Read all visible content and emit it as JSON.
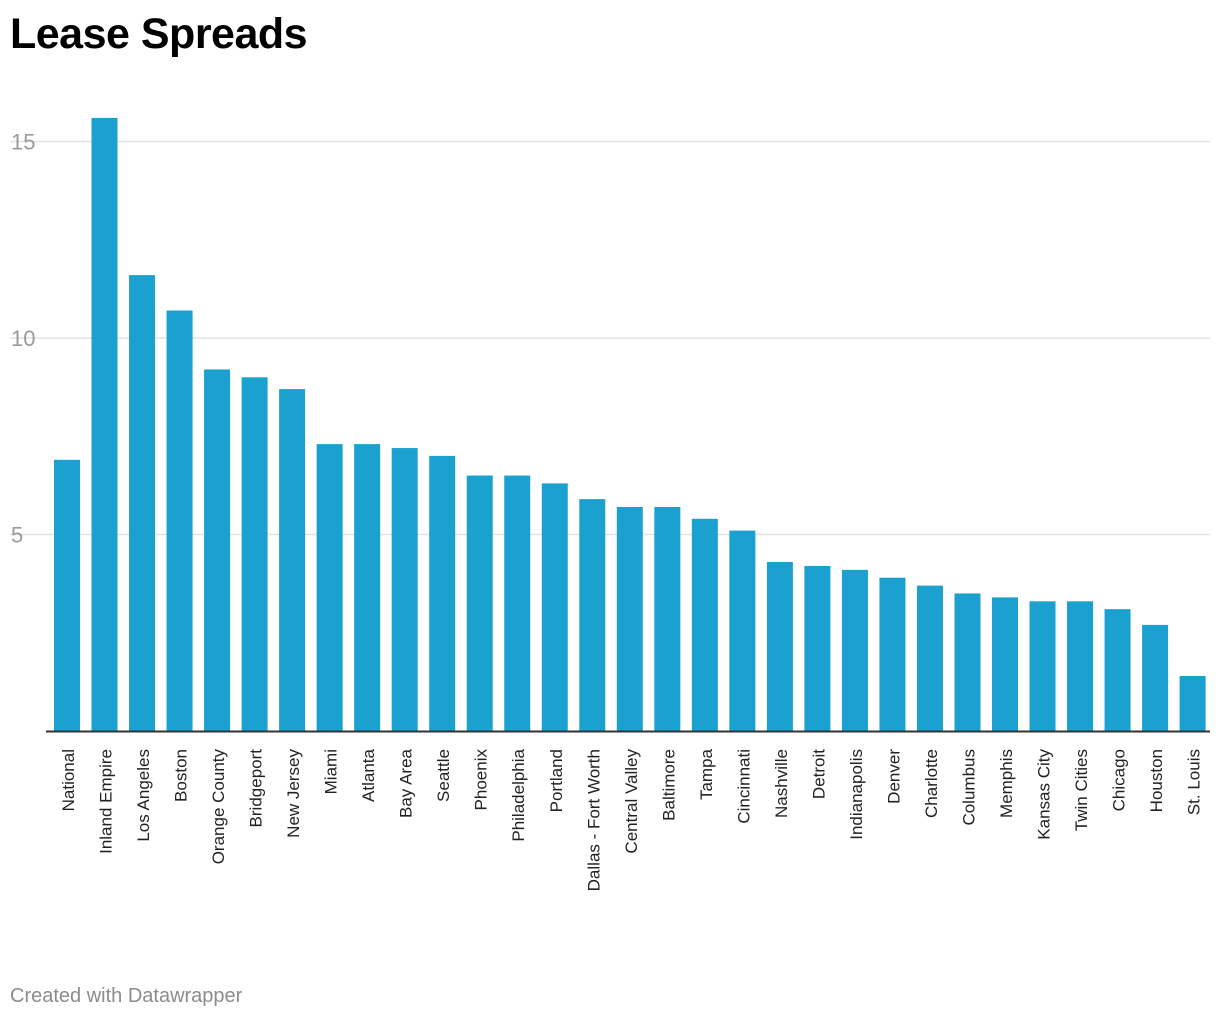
{
  "footer": {
    "credit": "Created with Datawrapper"
  },
  "colors": {
    "bar": "#1aa1cf",
    "grid": "#e2e2e2",
    "axis": "#333333",
    "tick_label": "#9a9a9a",
    "category_label": "#222222"
  },
  "chart_data": {
    "type": "bar",
    "title": "Lease Spreads",
    "xlabel": "",
    "ylabel": "",
    "ylim": [
      0,
      16
    ],
    "yticks": [
      5,
      10,
      15
    ],
    "grid": true,
    "categories": [
      "National",
      "Inland Empire",
      "Los Angeles",
      "Boston",
      "Orange County",
      "Bridgeport",
      "New Jersey",
      "Miami",
      "Atlanta",
      "Bay Area",
      "Seattle",
      "Phoenix",
      "Philadelphia",
      "Portland",
      "Dallas - Fort Worth",
      "Central Valley",
      "Baltimore",
      "Tampa",
      "Cincinnati",
      "Nashville",
      "Detroit",
      "Indianapolis",
      "Denver",
      "Charlotte",
      "Columbus",
      "Memphis",
      "Kansas City",
      "Twin Cities",
      "Chicago",
      "Houston",
      "St. Louis"
    ],
    "values": [
      6.9,
      15.6,
      11.6,
      10.7,
      9.2,
      9.0,
      8.7,
      7.3,
      7.3,
      7.2,
      7.0,
      6.5,
      6.5,
      6.3,
      5.9,
      5.7,
      5.7,
      5.4,
      5.1,
      4.3,
      4.2,
      4.1,
      3.9,
      3.7,
      3.5,
      3.4,
      3.3,
      3.3,
      3.1,
      2.7,
      1.4
    ]
  }
}
